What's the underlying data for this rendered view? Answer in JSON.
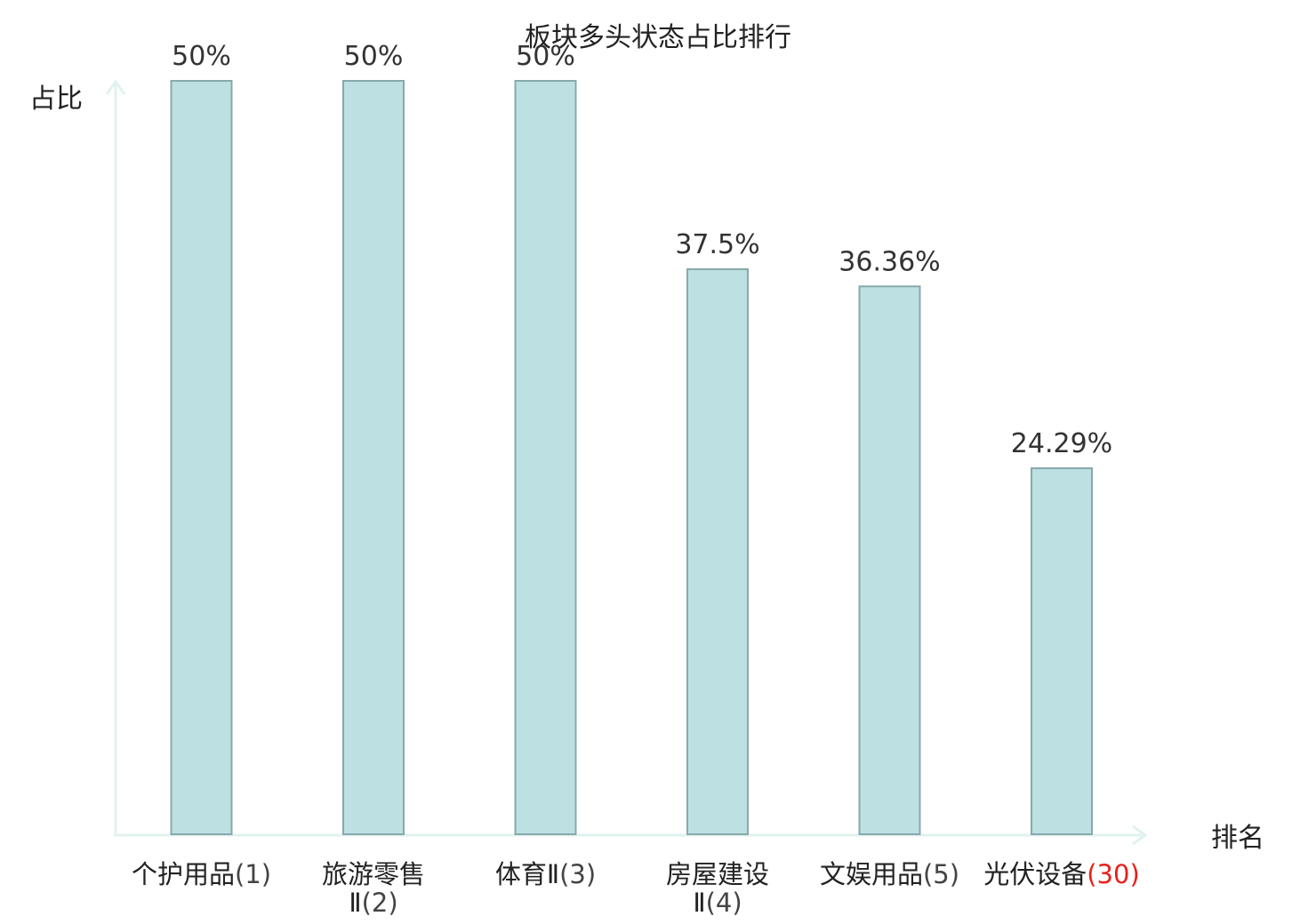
{
  "chart_data": {
    "type": "bar",
    "title": "板块多头状态占比排行",
    "ylabel": "占比",
    "xlabel": "排名",
    "ylim": [
      0,
      50
    ],
    "grid": false,
    "categories": [
      {
        "name": [
          "个护用品"
        ],
        "rank": "(1)"
      },
      {
        "name": [
          "旅游零售",
          "Ⅱ"
        ],
        "rank": "(2)"
      },
      {
        "name": [
          "体育Ⅱ"
        ],
        "rank": "(3)"
      },
      {
        "name": [
          "房屋建设",
          "Ⅱ"
        ],
        "rank": "(4)"
      },
      {
        "name": [
          "文娱用品"
        ],
        "rank": "(5)"
      },
      {
        "name": [
          "光伏设备"
        ],
        "rank": "(30)"
      }
    ],
    "values": [
      50,
      50,
      50,
      37.5,
      36.36,
      24.29
    ],
    "value_labels": [
      "50%",
      "50%",
      "50%",
      "37.5%",
      "36.36%",
      "24.29%"
    ],
    "highlight_index": 5,
    "colors": {
      "bar_fill": "#bde0e3",
      "bar_stroke": "#88a9ab",
      "axis": "#e0f2ef",
      "highlight_text": "#e8201c",
      "text": "#222222",
      "rank_text": "#444444"
    }
  }
}
